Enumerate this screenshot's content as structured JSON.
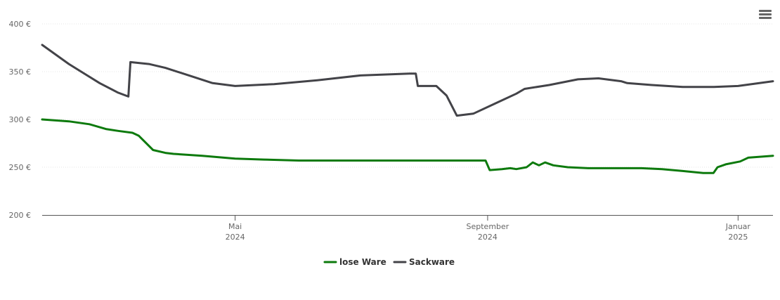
{
  "chart_data": {
    "type": "line",
    "y_ticks": [
      "200 €",
      "250 €",
      "300 €",
      "350 €",
      "400 €"
    ],
    "y_tick_values": [
      200,
      250,
      300,
      350,
      400
    ],
    "ylim": [
      200,
      400
    ],
    "xlim": [
      "2024-01-28",
      "2025-01-18"
    ],
    "x_ticks": [
      {
        "date": "2024-05-01",
        "month": "Mai",
        "year": "2024"
      },
      {
        "date": "2024-09-01",
        "month": "September",
        "year": "2024"
      },
      {
        "date": "2025-01-01",
        "month": "Januar",
        "year": "2025"
      }
    ],
    "grid": true,
    "legend_position": "bottom-center",
    "series": [
      {
        "name": "lose Ware",
        "color": "#0d7a0d",
        "points": [
          [
            "2024-01-28",
            300
          ],
          [
            "2024-02-10",
            298
          ],
          [
            "2024-02-20",
            295
          ],
          [
            "2024-02-28",
            290
          ],
          [
            "2024-03-05",
            288
          ],
          [
            "2024-03-12",
            286
          ],
          [
            "2024-03-15",
            283
          ],
          [
            "2024-03-22",
            268
          ],
          [
            "2024-03-28",
            265
          ],
          [
            "2024-04-01",
            264
          ],
          [
            "2024-04-15",
            262
          ],
          [
            "2024-05-01",
            259
          ],
          [
            "2024-05-15",
            258
          ],
          [
            "2024-06-01",
            257
          ],
          [
            "2024-08-31",
            257
          ],
          [
            "2024-09-02",
            247
          ],
          [
            "2024-09-08",
            248
          ],
          [
            "2024-09-12",
            249
          ],
          [
            "2024-09-15",
            248
          ],
          [
            "2024-09-20",
            250
          ],
          [
            "2024-09-23",
            255
          ],
          [
            "2024-09-26",
            252
          ],
          [
            "2024-09-29",
            255
          ],
          [
            "2024-10-03",
            252
          ],
          [
            "2024-10-10",
            250
          ],
          [
            "2024-10-20",
            249
          ],
          [
            "2024-11-15",
            249
          ],
          [
            "2024-11-25",
            248
          ],
          [
            "2024-12-05",
            246
          ],
          [
            "2024-12-15",
            244
          ],
          [
            "2024-12-20",
            244
          ],
          [
            "2024-12-22",
            250
          ],
          [
            "2024-12-26",
            253
          ],
          [
            "2025-01-02",
            256
          ],
          [
            "2025-01-06",
            260
          ],
          [
            "2025-01-18",
            262
          ]
        ]
      },
      {
        "name": "Sackware",
        "color": "#434348",
        "points": [
          [
            "2024-01-28",
            378
          ],
          [
            "2024-02-10",
            358
          ],
          [
            "2024-02-25",
            338
          ],
          [
            "2024-03-05",
            328
          ],
          [
            "2024-03-10",
            324
          ],
          [
            "2024-03-11",
            360
          ],
          [
            "2024-03-20",
            358
          ],
          [
            "2024-03-28",
            354
          ],
          [
            "2024-04-10",
            345
          ],
          [
            "2024-04-20",
            338
          ],
          [
            "2024-05-01",
            335
          ],
          [
            "2024-05-20",
            337
          ],
          [
            "2024-06-10",
            341
          ],
          [
            "2024-07-01",
            346
          ],
          [
            "2024-07-25",
            348
          ],
          [
            "2024-07-28",
            348
          ],
          [
            "2024-07-29",
            335
          ],
          [
            "2024-08-07",
            335
          ],
          [
            "2024-08-12",
            325
          ],
          [
            "2024-08-17",
            304
          ],
          [
            "2024-08-25",
            306
          ],
          [
            "2024-09-05",
            317
          ],
          [
            "2024-09-15",
            327
          ],
          [
            "2024-09-19",
            332
          ],
          [
            "2024-10-01",
            336
          ],
          [
            "2024-10-15",
            342
          ],
          [
            "2024-10-25",
            343
          ],
          [
            "2024-11-05",
            340
          ],
          [
            "2024-11-08",
            338
          ],
          [
            "2024-11-20",
            336
          ],
          [
            "2024-12-05",
            334
          ],
          [
            "2024-12-20",
            334
          ],
          [
            "2025-01-01",
            335
          ],
          [
            "2025-01-18",
            340
          ]
        ]
      }
    ]
  },
  "menu": {
    "icon": "hamburger-menu-icon"
  }
}
